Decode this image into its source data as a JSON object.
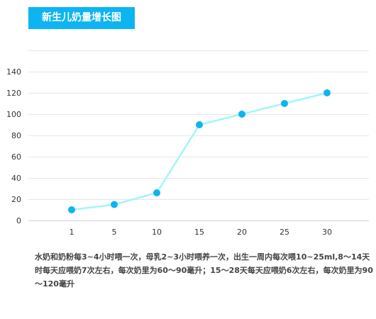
{
  "title": "新生儿奶量增长图",
  "caption": "水奶和奶粉每3~4小时喂一次，母乳2~3小时喂养一次，出生一周内每次喂10~25ml,8～14天时每天应喂奶7次左右，每次奶里为60～90毫升；15～28天每天应喂奶6次左右，每次奶里为90～120毫升",
  "colors": {
    "title_bg": "#0db4f2",
    "line": "#a4f5f7",
    "point": "#0db4f2",
    "grid": "#e6e6e6"
  },
  "chart_data": {
    "type": "line",
    "x": [
      "1",
      "5",
      "10",
      "15",
      "20",
      "25",
      "30"
    ],
    "values": [
      10,
      15,
      26,
      90,
      100,
      110,
      120
    ],
    "yticks": [
      0,
      20,
      40,
      60,
      80,
      100,
      120,
      140
    ],
    "ylim": [
      0,
      160
    ],
    "grid": true,
    "legend": "none"
  }
}
